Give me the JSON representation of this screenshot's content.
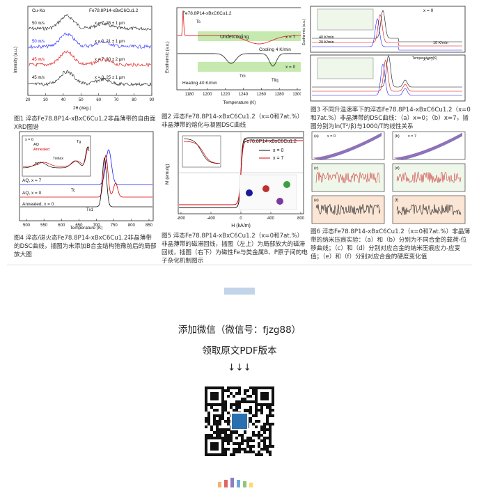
{
  "figures": [
    {
      "caption": "图1 淬态Fe78.8P14-xBxC6Cu1.2非晶薄带的自由面XRD图谱",
      "labels": [
        "Cu-Kα",
        "Fe78.8P14-xBxC6Cu1.2",
        "50 m/s",
        "x = 7, 25 ± 1 μm",
        "50 m/s",
        "x = 0, 21 ± 1 μm",
        "45 m/s",
        "x = 7, 30 ± 2 μm",
        "45 m/s",
        "x = 0, 25 ± 1 μm",
        "Intensity (a.u.)",
        "2θ (deg.)"
      ],
      "ticks": [
        "20",
        "30",
        "40",
        "50",
        "60",
        "70",
        "80",
        "90"
      ]
    },
    {
      "caption": "图2 淬态Fe78.8P14-xBxC6Cu1.2（x=0和7at.%）非晶薄带的熔化与凝固DSC曲线",
      "labels": [
        "Fe78.8P14-xBxC6Cu1.2",
        "Ts",
        "Undercooling",
        "x = 7",
        "Cooling 4 K/min",
        "x = 0",
        "Heating 40 K/min",
        "Tm",
        "Tliq",
        "Exothermic (a.u.)",
        "Temperature (K)"
      ],
      "ticks": [
        "1180",
        "1200",
        "1220",
        "1240",
        "1260",
        "1280",
        "1300"
      ]
    },
    {
      "caption": "图3 不同升温速率下的淬态Fe78.8P14-xBxC6Cu1.2（x=0和7at.%）非晶薄带的DSC曲线：（a）x=0；（b）x=7，插图分别为ln(T²/β)与1000/T的线性关系",
      "labels": [
        "x = 0",
        "x = 7",
        "40 K/min",
        "20 K/min",
        "10 K/min",
        "Temperature (K)",
        "Exothermic (a.u.)"
      ],
      "ticks": [
        "650",
        "700",
        "750",
        "800"
      ]
    },
    {
      "caption": "图4 淬态/退火态Fe78.8P14-xBxC6Cu1.2非晶薄带的DSC曲线，插图为未添加B合金结构弛豫前后的局部放大图",
      "labels": [
        "x = 0",
        "AQ",
        "Annealed",
        "Tc",
        "Trelax",
        "Tg",
        "AQ, x = 7",
        "AQ, x = 0",
        "Annealed, x = 0",
        "Tc",
        "Tx1",
        "Exothermic (a.u.)",
        "Temperature (K)"
      ],
      "ticks": [
        "500",
        "550",
        "600",
        "650",
        "700",
        "750",
        "800",
        "850"
      ]
    },
    {
      "caption": "图5 淬态Fe78.8P14-xBxC6Cu1.2（x=0和7at.%）非晶薄带的磁滞回线，插图（左上）为局部放大的磁滞回线，插图（右下）为磁性Fe与类金属B、P原子间的电子杂化机制图示",
      "labels": [
        "Fe78.8P14-xBxC6Cu1.2",
        "x = 0",
        "x = 7",
        "M (emu/g)",
        "H (kA/m)"
      ],
      "ticks": [
        "-800",
        "-400",
        "0",
        "400",
        "800"
      ]
    },
    {
      "caption": "图6 淬态Fe78.8P14-xBxC6Cu1.2（x=0和7at.%）非晶薄带的纳米压痕实验：（a）和（b）分别为不同合金的载荷-位移曲线；（c）和（d）分别对应合金的纳米压痕应力-应变值；（e）和（f）分别对应合金的硬度变化值",
      "labels": [
        "x = 0",
        "x = 7",
        "(a)",
        "(b)",
        "(c)",
        "(d)",
        "(e)",
        "(f)"
      ]
    }
  ],
  "footer": {
    "wechat": "添加微信（微信号：fjzg88）",
    "pdf": "领取原文PDF版本",
    "arrows": "↓↓↓"
  }
}
